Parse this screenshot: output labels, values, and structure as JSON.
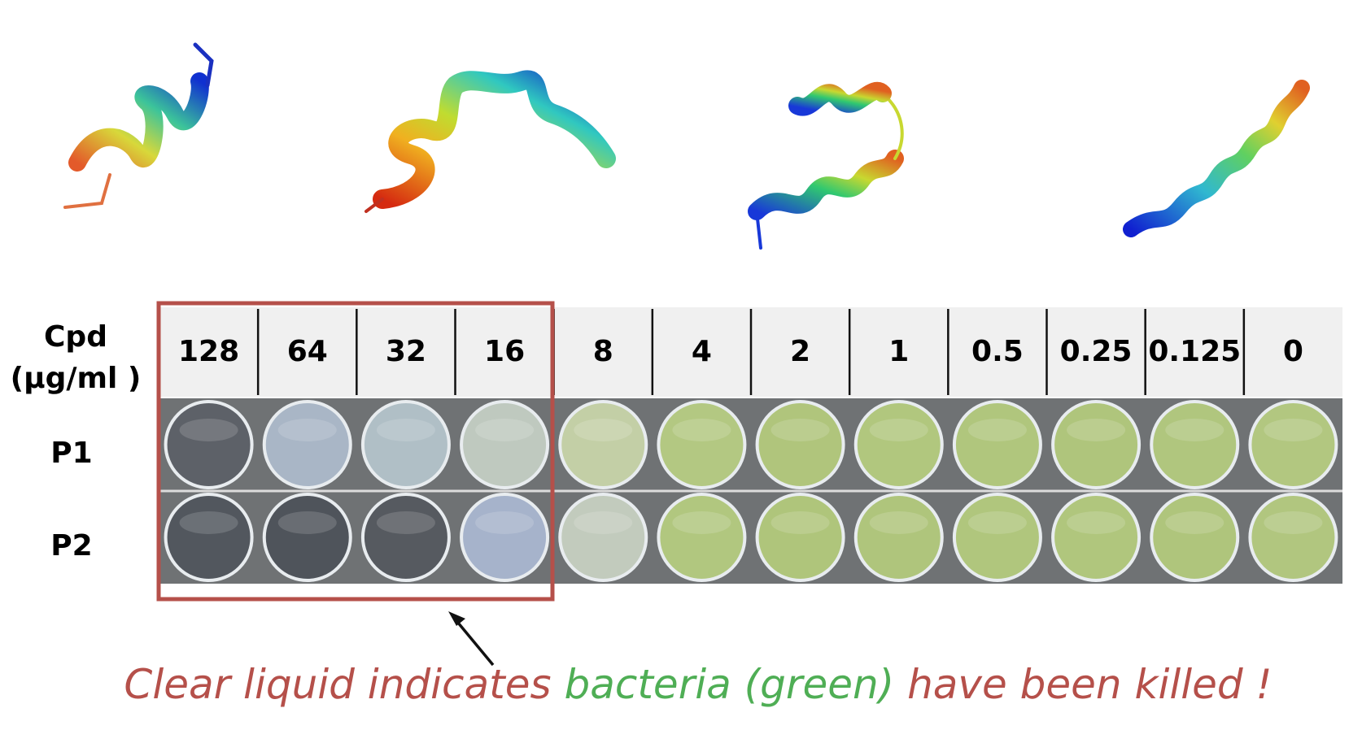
{
  "header_label_lines": [
    "Cpd",
    "(µg/ml )"
  ],
  "concentrations": [
    "128",
    "64",
    "32",
    "16",
    "8",
    "4",
    "2",
    "1",
    "0.5",
    "0.25",
    "0.125",
    "0"
  ],
  "rows": [
    {
      "label": "P1",
      "well_colors": [
        "#5d6168",
        "#a9b6c6",
        "#b0bfc6",
        "#bfc9bf",
        "#c3cfa6",
        "#b3c882",
        "#b0c57c",
        "#b1c77e",
        "#b0c67d",
        "#afc57c",
        "#b0c67e",
        "#b2c780"
      ]
    },
    {
      "label": "P2",
      "well_colors": [
        "#52575e",
        "#4f545b",
        "#565a60",
        "#a6b3cb",
        "#c2cbbd",
        "#b1c77f",
        "#afc57b",
        "#afc57c",
        "#b0c67d",
        "#b0c67d",
        "#afc57c",
        "#b1c67f"
      ]
    }
  ],
  "caption": [
    {
      "text": "Clear liquid indicates ",
      "color": "#b5504a"
    },
    {
      "text": "bacteria (green)",
      "color": "#4fae55"
    },
    {
      "text": " have been killed !",
      "color": "#b5504a"
    }
  ]
}
